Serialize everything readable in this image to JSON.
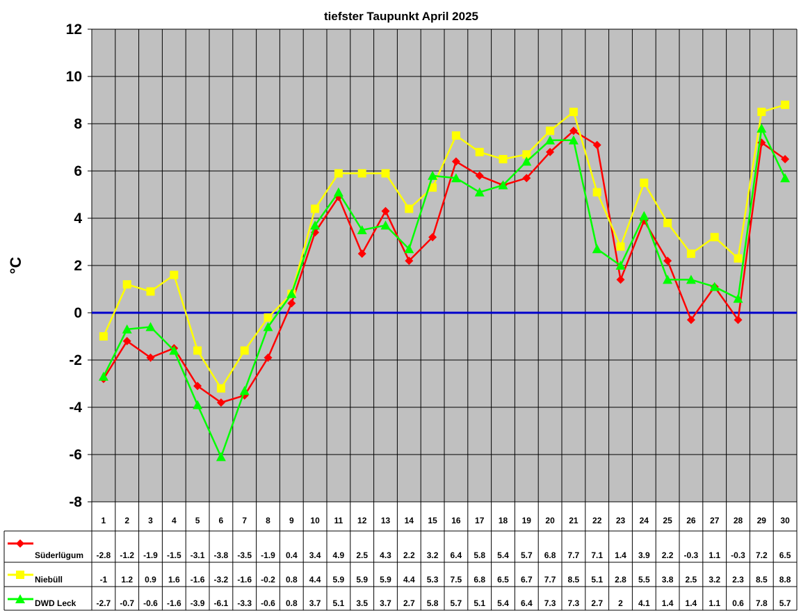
{
  "chart_data": {
    "type": "line",
    "title": "tiefster Taupunkt April 2025",
    "ylabel": "°C",
    "xlabel": "",
    "ylim": [
      -8,
      12
    ],
    "yticks": [
      12,
      10,
      8,
      6,
      4,
      2,
      0,
      -2,
      -4,
      -6,
      -8
    ],
    "grid": true,
    "zero_line": true,
    "legend_placement": "data-table-left",
    "plot_background": "#C0C0C0",
    "zero_line_color": "#0000CC",
    "categories": [
      "1",
      "2",
      "3",
      "4",
      "5",
      "6",
      "7",
      "8",
      "9",
      "10",
      "11",
      "12",
      "13",
      "14",
      "15",
      "16",
      "17",
      "18",
      "19",
      "20",
      "21",
      "22",
      "23",
      "24",
      "25",
      "26",
      "27",
      "28",
      "29",
      "30"
    ],
    "series": [
      {
        "name": "Süderlügum",
        "color": "#FF0000",
        "marker": "diamond",
        "values": [
          -2.8,
          -1.2,
          -1.9,
          -1.5,
          -3.1,
          -3.8,
          -3.5,
          -1.9,
          0.4,
          3.4,
          4.9,
          2.5,
          4.3,
          2.2,
          3.2,
          6.4,
          5.8,
          5.4,
          5.7,
          6.8,
          7.7,
          7.1,
          1.4,
          3.9,
          2.2,
          -0.3,
          1.1,
          -0.3,
          7.2,
          6.5
        ]
      },
      {
        "name": "Niebüll",
        "color": "#FFFF00",
        "marker": "square",
        "values": [
          -1,
          1.2,
          0.9,
          1.6,
          -1.6,
          -3.2,
          -1.6,
          -0.2,
          0.8,
          4.4,
          5.9,
          5.9,
          5.9,
          4.4,
          5.3,
          7.5,
          6.8,
          6.5,
          6.7,
          7.7,
          8.5,
          5.1,
          2.8,
          5.5,
          3.8,
          2.5,
          3.2,
          2.3,
          8.5,
          8.8
        ]
      },
      {
        "name": "DWD Leck",
        "color": "#00FF00",
        "marker": "triangle",
        "values": [
          -2.7,
          -0.7,
          -0.6,
          -1.6,
          -3.9,
          -6.1,
          -3.3,
          -0.6,
          0.8,
          3.7,
          5.1,
          3.5,
          3.7,
          2.7,
          5.8,
          5.7,
          5.1,
          5.4,
          6.4,
          7.3,
          7.3,
          2.7,
          2,
          4.1,
          1.4,
          1.4,
          1.1,
          0.6,
          7.8,
          5.7
        ]
      }
    ]
  }
}
